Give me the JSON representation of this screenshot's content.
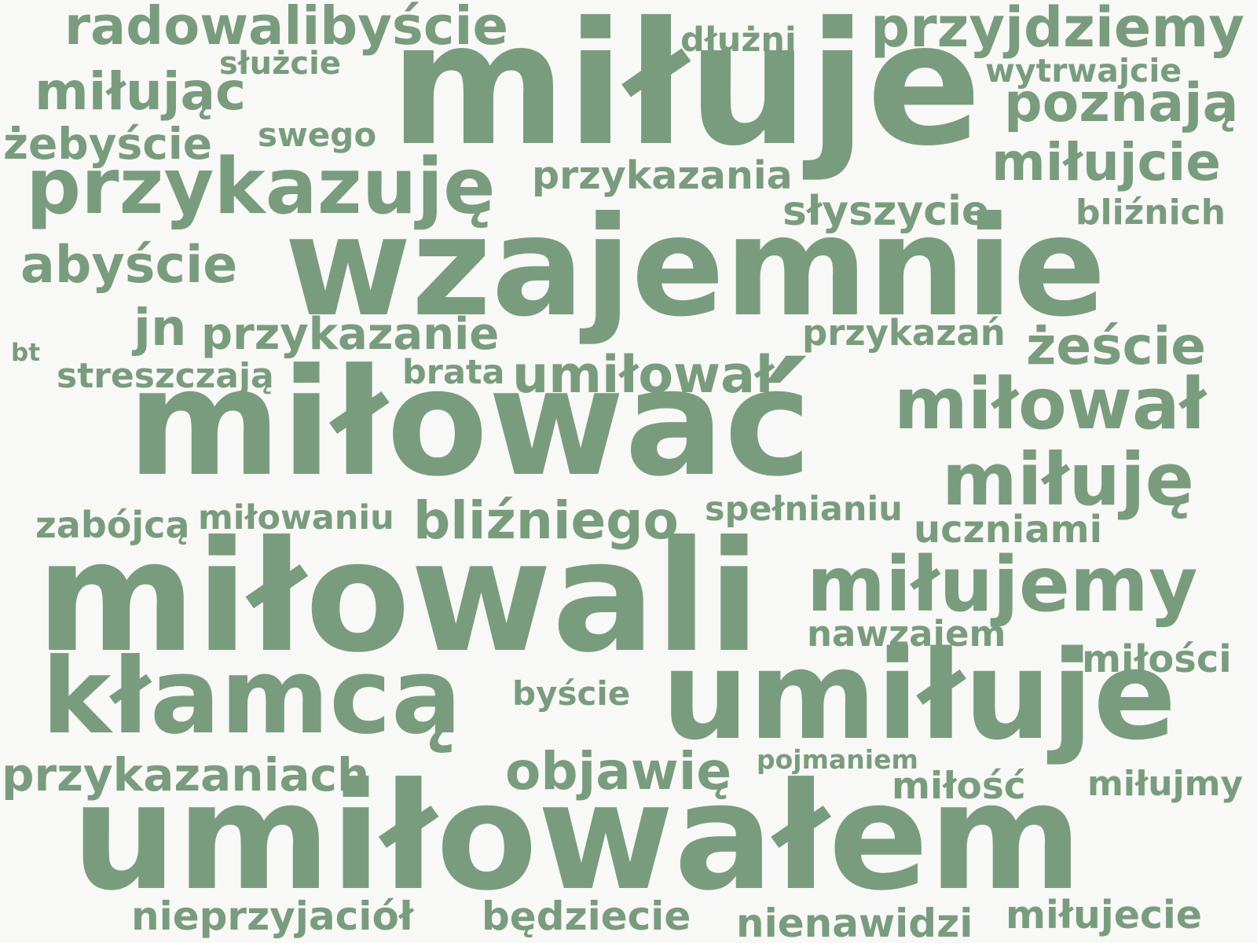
{
  "colors": {
    "background": "#f8f8f6",
    "word": "#7a9c7e"
  },
  "words": {
    "w01": "radowalibyście",
    "w02": "miłuje",
    "w03": "dłużni",
    "w04": "przyjdziemy",
    "w05": "służcie",
    "w06": "wytrwajcie",
    "w07": "miłując",
    "w08": "poznają",
    "w09": "żebyście",
    "w10": "swego",
    "w11": "przykazuję",
    "w12": "przykazania",
    "w13": "miłujcie",
    "w14": "słyszycie",
    "w15": "bliźnich",
    "w16": "abyście",
    "w17": "wzajemnie",
    "w18": "jn",
    "w19": "przykazanie",
    "w20": "przykazań",
    "w21": "bt",
    "w22": "żeście",
    "w23": "streszczają",
    "w24": "brata",
    "w25": "umiłował",
    "w26": "miłować",
    "w27": "miłował",
    "w28": "miłuję",
    "w29": "zabójcą",
    "w30": "miłowaniu",
    "w31": "bliźniego",
    "w32": "spełnianiu",
    "w33": "uczniami",
    "w34": "miłowali",
    "w35": "miłujemy",
    "w36": "nawzajem",
    "w37": "miłości",
    "w38": "kłamcą",
    "w39": "byście",
    "w40": "umiłuje",
    "w41": "pojmaniem",
    "w42": "przykazaniach",
    "w43": "objawię",
    "w44": "miłość",
    "w45": "miłujmy",
    "w46": "umiłowałem",
    "w47": "nieprzyjaciół",
    "w48": "będziecie",
    "w49": "nienawidzi",
    "w50": "miłujecie"
  }
}
